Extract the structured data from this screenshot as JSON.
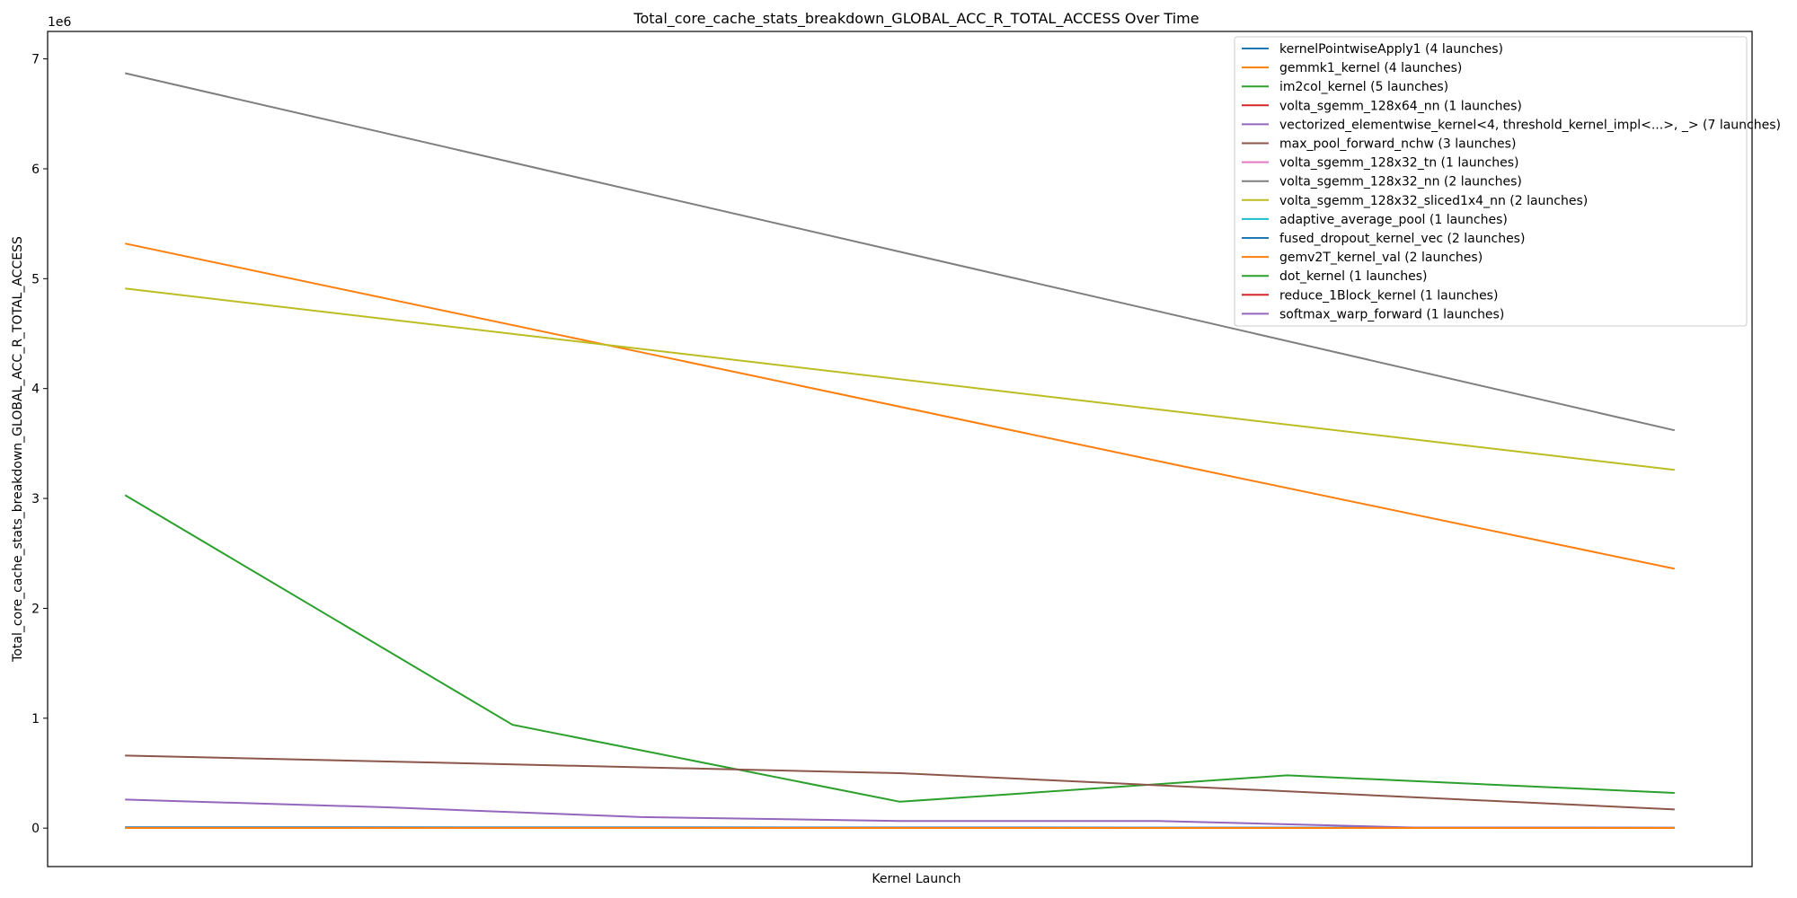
{
  "chart_data": {
    "type": "line",
    "title": "Total_core_cache_stats_breakdown_GLOBAL_ACC_R_TOTAL_ACCESS Over Time",
    "xlabel": "Kernel Launch",
    "ylabel": "Total_core_cache_stats_breakdown_GLOBAL_ACC_R_TOTAL_ACCESS",
    "y_offset_text": "1e6",
    "x_ticks_shown": false,
    "grid": false,
    "legend_placement": "upper-right",
    "xlim": [
      -0.2,
      4.2
    ],
    "ylim": [
      -350000,
      7250000
    ],
    "yticks": [
      0,
      1000000,
      2000000,
      3000000,
      4000000,
      5000000,
      6000000,
      7000000
    ],
    "ytick_labels": [
      "0",
      "1",
      "2",
      "3",
      "4",
      "5",
      "6",
      "7"
    ],
    "series": [
      {
        "name": "kernelPointwiseApply1 (4 launches)",
        "color": "#1f77b4",
        "x": [
          0,
          1.333,
          2.667,
          4
        ],
        "y": [
          8000,
          6000,
          5000,
          4000
        ]
      },
      {
        "name": "gemmk1_kernel (4 launches)",
        "color": "#ff7f0e",
        "x": [
          0,
          1.333,
          2.667,
          4
        ],
        "y": [
          5320000,
          4330000,
          3340000,
          2360000
        ]
      },
      {
        "name": "im2col_kernel (5 launches)",
        "color": "#2ca02c",
        "x": [
          0,
          1,
          2,
          3,
          4
        ],
        "y": [
          3030000,
          940000,
          240000,
          480000,
          320000
        ]
      },
      {
        "name": "volta_sgemm_128x64_nn (1 launches)",
        "color": "#d62728",
        "x": [
          0
        ],
        "y": [
          0
        ]
      },
      {
        "name": "vectorized_elementwise_kernel<4, threshold_kernel_impl<...>, _> (7 launches)",
        "color": "#9467bd",
        "x": [
          0,
          0.667,
          1.333,
          2,
          2.667,
          3.333,
          4
        ],
        "y": [
          260000,
          190000,
          100000,
          65000,
          65000,
          5000,
          2000
        ]
      },
      {
        "name": "max_pool_forward_nchw (3 launches)",
        "color": "#8c564b",
        "x": [
          0,
          2,
          4
        ],
        "y": [
          660000,
          500000,
          170000
        ]
      },
      {
        "name": "volta_sgemm_128x32_tn (1 launches)",
        "color": "#e377c2",
        "x": [
          0
        ],
        "y": [
          0
        ]
      },
      {
        "name": "volta_sgemm_128x32_nn (2 launches)",
        "color": "#7f7f7f",
        "x": [
          0,
          4
        ],
        "y": [
          6870000,
          3620000
        ]
      },
      {
        "name": "volta_sgemm_128x32_sliced1x4_nn (2 launches)",
        "color": "#bcbd22",
        "x": [
          0,
          4
        ],
        "y": [
          4910000,
          3260000
        ]
      },
      {
        "name": "adaptive_average_pool (1 launches)",
        "color": "#17becf",
        "x": [
          0
        ],
        "y": [
          0
        ]
      },
      {
        "name": "fused_dropout_kernel_vec (2 launches)",
        "color": "#1f77b4",
        "x": [
          0,
          4
        ],
        "y": [
          2000,
          1000
        ]
      },
      {
        "name": "gemv2T_kernel_val (2 launches)",
        "color": "#ff7f0e",
        "x": [
          0,
          4
        ],
        "y": [
          1000,
          1000
        ]
      },
      {
        "name": "dot_kernel (1 launches)",
        "color": "#2ca02c",
        "x": [
          0
        ],
        "y": [
          0
        ]
      },
      {
        "name": "reduce_1Block_kernel (1 launches)",
        "color": "#d62728",
        "x": [
          0
        ],
        "y": [
          0
        ]
      },
      {
        "name": "softmax_warp_forward (1 launches)",
        "color": "#9467bd",
        "x": [
          0
        ],
        "y": [
          0
        ]
      }
    ]
  }
}
